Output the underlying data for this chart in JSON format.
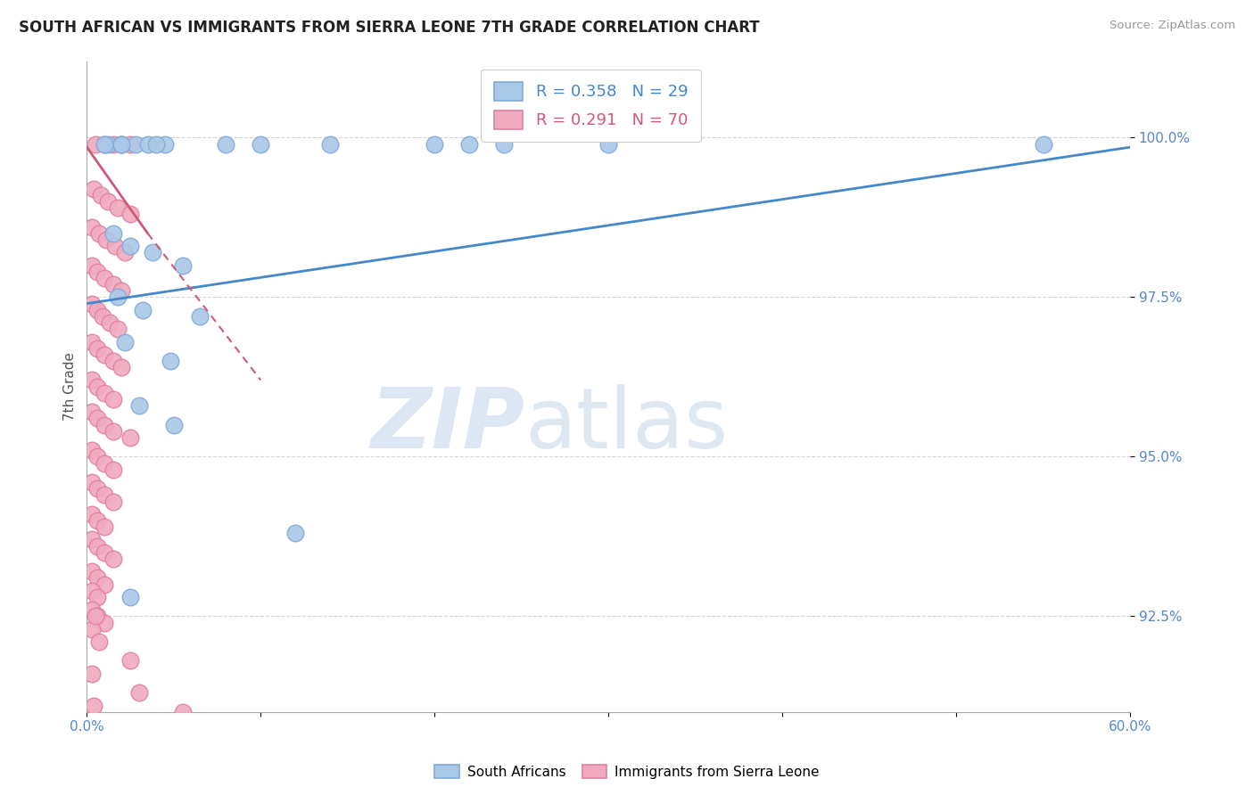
{
  "title": "SOUTH AFRICAN VS IMMIGRANTS FROM SIERRA LEONE 7TH GRADE CORRELATION CHART",
  "source": "Source: ZipAtlas.com",
  "xlabel_vals": [
    0.0,
    10.0,
    20.0,
    30.0,
    40.0,
    50.0,
    60.0
  ],
  "ylabel": "7th Grade",
  "ylabel_vals": [
    92.5,
    95.0,
    97.5,
    100.0
  ],
  "xlim": [
    0.0,
    60.0
  ],
  "ylim": [
    91.0,
    101.2
  ],
  "R_blue": 0.358,
  "N_blue": 29,
  "R_pink": 0.291,
  "N_pink": 70,
  "legend_label_blue": "South Africans",
  "legend_label_pink": "Immigrants from Sierra Leone",
  "blue_color": "#aac8e8",
  "pink_color": "#f0aabf",
  "blue_edge_color": "#80aad8",
  "pink_edge_color": "#e080a0",
  "blue_line_color": "#4488cc",
  "pink_line_color": "#d05878",
  "background_color": "#ffffff",
  "watermark_zip": "ZIP",
  "watermark_atlas": "atlas",
  "blue_points_x": [
    1.2,
    2.0,
    2.8,
    3.5,
    4.5,
    1.5,
    2.5,
    3.8,
    5.5,
    1.8,
    3.2,
    6.5,
    2.2,
    4.8,
    3.0,
    5.0,
    55.0,
    30.0,
    20.0,
    22.0,
    24.0,
    10.0,
    12.0,
    2.5,
    1.0,
    8.0,
    14.0,
    2.0,
    4.0
  ],
  "blue_points_y": [
    99.9,
    99.9,
    99.9,
    99.9,
    99.9,
    98.5,
    98.3,
    98.2,
    98.0,
    97.5,
    97.3,
    97.2,
    96.8,
    96.5,
    95.8,
    95.5,
    99.9,
    99.9,
    99.9,
    99.9,
    99.9,
    99.9,
    93.8,
    92.8,
    99.9,
    99.9,
    99.9,
    99.9,
    99.9
  ],
  "pink_points_x": [
    0.5,
    1.0,
    1.5,
    2.0,
    2.5,
    0.4,
    0.8,
    1.2,
    1.8,
    2.5,
    0.3,
    0.7,
    1.1,
    1.6,
    2.2,
    0.3,
    0.6,
    1.0,
    1.5,
    2.0,
    0.3,
    0.6,
    0.9,
    1.3,
    1.8,
    0.3,
    0.6,
    1.0,
    1.5,
    2.0,
    0.3,
    0.6,
    1.0,
    1.5,
    0.3,
    0.6,
    1.0,
    1.5,
    2.5,
    0.3,
    0.6,
    1.0,
    1.5,
    0.3,
    0.6,
    1.0,
    1.5,
    0.3,
    0.6,
    1.0,
    0.3,
    0.6,
    1.0,
    1.5,
    0.3,
    0.6,
    1.0,
    0.3,
    0.6,
    0.3,
    0.6,
    1.0,
    0.3,
    0.7,
    2.5,
    0.3,
    3.0,
    0.4,
    5.5,
    0.5
  ],
  "pink_points_y": [
    99.9,
    99.9,
    99.9,
    99.9,
    99.9,
    99.2,
    99.1,
    99.0,
    98.9,
    98.8,
    98.6,
    98.5,
    98.4,
    98.3,
    98.2,
    98.0,
    97.9,
    97.8,
    97.7,
    97.6,
    97.4,
    97.3,
    97.2,
    97.1,
    97.0,
    96.8,
    96.7,
    96.6,
    96.5,
    96.4,
    96.2,
    96.1,
    96.0,
    95.9,
    95.7,
    95.6,
    95.5,
    95.4,
    95.3,
    95.1,
    95.0,
    94.9,
    94.8,
    94.6,
    94.5,
    94.4,
    94.3,
    94.1,
    94.0,
    93.9,
    93.7,
    93.6,
    93.5,
    93.4,
    93.2,
    93.1,
    93.0,
    92.9,
    92.8,
    92.6,
    92.5,
    92.4,
    92.3,
    92.1,
    91.8,
    91.6,
    91.3,
    91.1,
    91.0,
    92.5
  ],
  "blue_line_x0": 0.0,
  "blue_line_x1": 60.0,
  "blue_line_y0": 97.4,
  "blue_line_y1": 99.85,
  "pink_line_x0": 0.0,
  "pink_line_x1": 10.0,
  "pink_line_y0": 99.85,
  "pink_line_y1": 96.2,
  "pink_dash_x0": 3.5,
  "pink_dash_x1": 10.0,
  "pink_dash_y0": 98.5,
  "pink_dash_y1": 96.2
}
